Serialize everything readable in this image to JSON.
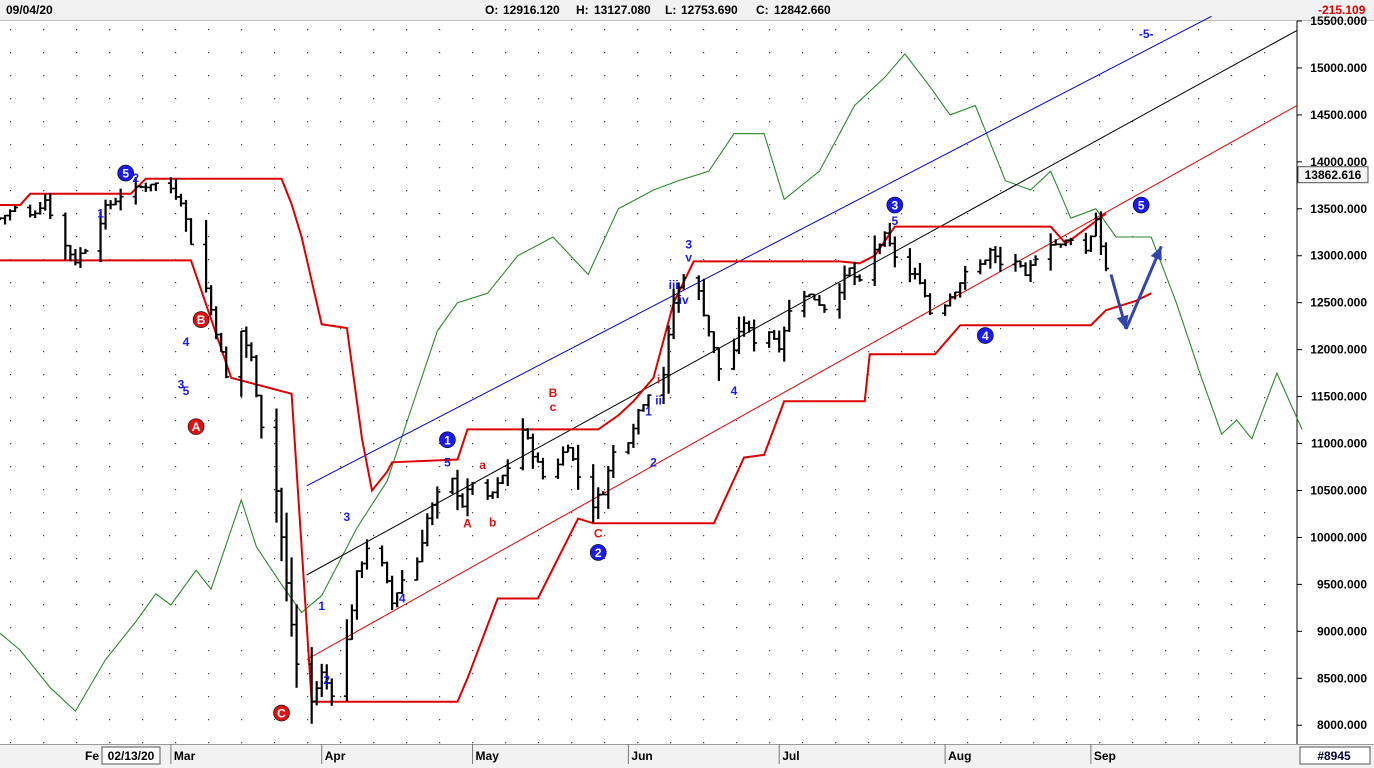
{
  "header": {
    "date": "09/04/20",
    "open_label": "O:",
    "open": "12916.120",
    "high_label": "H:",
    "high": "13127.080",
    "low_label": "L:",
    "low": "12753.690",
    "close_label": "C:",
    "close": "12842.660",
    "change": "-215.109"
  },
  "footer": {
    "cursor_date": "02/13/20",
    "partial_month": "Fe",
    "symbol": "#8945"
  },
  "colors": {
    "price_bars": "#000000",
    "upper_channel": "#0000cc",
    "middle_channel": "#000000",
    "lower_channel": "#dd0000",
    "stop_line": "#dd0000",
    "oscillator": "#2a8a2a",
    "wave_label_blue": "#1a1aee",
    "wave_label_red": "#dd1111",
    "forecast_arrow": "#3344aa",
    "change_negative": "#dd0000",
    "price_tag_bg": "#f3f3f3"
  },
  "chart_data": {
    "type": "ohlc",
    "title": "",
    "xlabel": "",
    "ylabel": "",
    "grid": true,
    "ylim": [
      7800,
      15500
    ],
    "y_ticks": [
      "8000.000",
      "8500.000",
      "9000.000",
      "9500.000",
      "10000.000",
      "10500.000",
      "11000.000",
      "11500.000",
      "12000.000",
      "12500.000",
      "13000.000",
      "13500.000",
      "14000.000",
      "14500.000",
      "15000.000",
      "15500.000"
    ],
    "x_range": [
      "2020-01-28",
      "2020-10-12"
    ],
    "x_ticks": [
      {
        "label": "Mar",
        "date": "2020-03-02"
      },
      {
        "label": "Apr",
        "date": "2020-04-01"
      },
      {
        "label": "May",
        "date": "2020-05-01"
      },
      {
        "label": "Jun",
        "date": "2020-06-01"
      },
      {
        "label": "Jul",
        "date": "2020-07-01"
      },
      {
        "label": "Aug",
        "date": "2020-08-03"
      },
      {
        "label": "Sep",
        "date": "2020-09-01"
      }
    ],
    "current_price_label": "13862.616",
    "current_price": 13862.616,
    "price_path": [
      [
        "2020-01-28",
        13400
      ],
      [
        "2020-01-31",
        13500
      ],
      [
        "2020-02-03",
        13420
      ],
      [
        "2020-02-06",
        13600
      ],
      [
        "2020-02-09",
        13180
      ],
      [
        "2020-02-12",
        12950
      ],
      [
        "2020-02-15",
        13150
      ],
      [
        "2020-02-18",
        13500
      ],
      [
        "2020-02-21",
        13650
      ],
      [
        "2020-02-24",
        13700
      ],
      [
        "2020-02-27",
        13780
      ],
      [
        "2020-03-02",
        13720
      ],
      [
        "2020-03-04",
        13600
      ],
      [
        "2020-03-06",
        13150
      ],
      [
        "2020-03-09",
        12650
      ],
      [
        "2020-03-11",
        12200
      ],
      [
        "2020-03-13",
        11700
      ],
      [
        "2020-03-16",
        12200
      ],
      [
        "2020-03-18",
        11900
      ],
      [
        "2020-03-20",
        11200
      ],
      [
        "2020-03-23",
        10500
      ],
      [
        "2020-03-25",
        9500
      ],
      [
        "2020-03-27",
        8650
      ],
      [
        "2020-03-30",
        8250
      ],
      [
        "2020-04-01",
        8550
      ],
      [
        "2020-04-03",
        8350
      ],
      [
        "2020-04-06",
        8900
      ],
      [
        "2020-04-08",
        9600
      ],
      [
        "2020-04-10",
        9900
      ],
      [
        "2020-04-13",
        9700
      ],
      [
        "2020-04-15",
        9300
      ],
      [
        "2020-04-17",
        9550
      ],
      [
        "2020-04-20",
        9750
      ],
      [
        "2020-04-22",
        10200
      ],
      [
        "2020-04-24",
        10450
      ],
      [
        "2020-04-27",
        10600
      ],
      [
        "2020-04-29",
        10350
      ],
      [
        "2020-05-01",
        10600
      ],
      [
        "2020-05-04",
        10400
      ],
      [
        "2020-05-06",
        10550
      ],
      [
        "2020-05-08",
        10750
      ],
      [
        "2020-05-11",
        11150
      ],
      [
        "2020-05-13",
        10900
      ],
      [
        "2020-05-15",
        10650
      ],
      [
        "2020-05-18",
        10800
      ],
      [
        "2020-05-20",
        11000
      ],
      [
        "2020-05-22",
        10650
      ],
      [
        "2020-05-25",
        10350
      ],
      [
        "2020-05-27",
        10500
      ],
      [
        "2020-05-29",
        10900
      ],
      [
        "2020-06-01",
        11050
      ],
      [
        "2020-06-03",
        11350
      ],
      [
        "2020-06-05",
        11550
      ],
      [
        "2020-06-08",
        11750
      ],
      [
        "2020-06-10",
        12500
      ],
      [
        "2020-06-12",
        12800
      ],
      [
        "2020-06-15",
        12600
      ],
      [
        "2020-06-17",
        12200
      ],
      [
        "2020-06-19",
        11800
      ],
      [
        "2020-06-22",
        12000
      ],
      [
        "2020-06-24",
        12300
      ],
      [
        "2020-06-26",
        12100
      ],
      [
        "2020-06-29",
        12200
      ],
      [
        "2020-07-01",
        12050
      ],
      [
        "2020-07-03",
        12400
      ],
      [
        "2020-07-06",
        12600
      ],
      [
        "2020-07-08",
        12550
      ],
      [
        "2020-07-10",
        12450
      ],
      [
        "2020-07-13",
        12650
      ],
      [
        "2020-07-15",
        12850
      ],
      [
        "2020-07-17",
        12700
      ],
      [
        "2020-07-20",
        13050
      ],
      [
        "2020-07-22",
        13200
      ],
      [
        "2020-07-24",
        13000
      ],
      [
        "2020-07-27",
        12800
      ],
      [
        "2020-07-29",
        12750
      ],
      [
        "2020-07-31",
        12400
      ],
      [
        "2020-08-03",
        12500
      ],
      [
        "2020-08-05",
        12650
      ],
      [
        "2020-08-07",
        12800
      ],
      [
        "2020-08-10",
        12900
      ],
      [
        "2020-08-12",
        13050
      ],
      [
        "2020-08-14",
        12900
      ],
      [
        "2020-08-17",
        12950
      ],
      [
        "2020-08-19",
        12750
      ],
      [
        "2020-08-21",
        13000
      ],
      [
        "2020-08-24",
        13150
      ],
      [
        "2020-08-26",
        13100
      ],
      [
        "2020-08-28",
        13200
      ],
      [
        "2020-08-31",
        13050
      ],
      [
        "2020-09-02",
        13400
      ],
      [
        "2020-09-04",
        12850
      ]
    ],
    "upper_channel": [
      [
        "2020-03-29",
        10550
      ],
      [
        "2020-09-25",
        15550
      ]
    ],
    "middle_channel": [
      [
        "2020-03-29",
        9600
      ],
      [
        "2020-10-12",
        15400
      ]
    ],
    "lower_channel": [
      [
        "2020-03-29",
        8700
      ],
      [
        "2020-10-12",
        14600
      ]
    ],
    "stop_line": [
      [
        "2020-01-28",
        13540
      ],
      [
        "2020-02-01",
        13540
      ],
      [
        "2020-02-03",
        13660
      ],
      [
        "2020-02-23",
        13660
      ],
      [
        "2020-02-26",
        13820
      ],
      [
        "2020-03-24",
        13820
      ],
      [
        "2020-03-26",
        13550
      ],
      [
        "2020-03-28",
        13200
      ],
      [
        "2020-04-01",
        12270
      ],
      [
        "2020-04-06",
        12230
      ],
      [
        "2020-04-09",
        11050
      ],
      [
        "2020-04-11",
        10500
      ],
      [
        "2020-04-14",
        10700
      ],
      [
        "2020-04-15",
        10800
      ],
      [
        "2020-04-28",
        10830
      ],
      [
        "2020-04-30",
        11150
      ],
      [
        "2020-05-26",
        11150
      ],
      [
        "2020-05-30",
        11300
      ],
      [
        "2020-06-02",
        11450
      ],
      [
        "2020-06-06",
        11700
      ],
      [
        "2020-06-10",
        12500
      ],
      [
        "2020-06-14",
        12940
      ],
      [
        "2020-07-13",
        12940
      ],
      [
        "2020-07-17",
        12920
      ],
      [
        "2020-07-20",
        13000
      ],
      [
        "2020-07-24",
        13310
      ],
      [
        "2020-08-24",
        13310
      ],
      [
        "2020-08-27",
        13130
      ],
      [
        "2020-09-04",
        13450
      ]
    ],
    "support_line": [
      [
        "2020-01-28",
        12950
      ],
      [
        "2020-03-04",
        12950
      ],
      [
        "2020-03-06",
        12950
      ],
      [
        "2020-03-14",
        11700
      ],
      [
        "2020-03-26",
        11530
      ],
      [
        "2020-03-30",
        8250
      ],
      [
        "2020-04-28",
        8250
      ],
      [
        "2020-04-30",
        8500
      ],
      [
        "2020-05-06",
        9350
      ],
      [
        "2020-05-14",
        9350
      ],
      [
        "2020-05-22",
        10200
      ],
      [
        "2020-05-25",
        10150
      ],
      [
        "2020-06-18",
        10150
      ],
      [
        "2020-06-24",
        10850
      ],
      [
        "2020-06-28",
        10880
      ],
      [
        "2020-07-02",
        11450
      ],
      [
        "2020-07-18",
        11450
      ],
      [
        "2020-07-19",
        11950
      ],
      [
        "2020-08-01",
        11950
      ],
      [
        "2020-08-06",
        12260
      ],
      [
        "2020-09-01",
        12260
      ],
      [
        "2020-09-04",
        12420
      ],
      [
        "2020-09-10",
        12520
      ],
      [
        "2020-09-13",
        12600
      ]
    ],
    "oscillator_line": [
      [
        "2020-01-28",
        8980
      ],
      [
        "2020-02-01",
        8800
      ],
      [
        "2020-02-07",
        8400
      ],
      [
        "2020-02-12",
        8150
      ],
      [
        "2020-02-18",
        8700
      ],
      [
        "2020-02-24",
        9100
      ],
      [
        "2020-02-28",
        9400
      ],
      [
        "2020-03-02",
        9280
      ],
      [
        "2020-03-07",
        9650
      ],
      [
        "2020-03-10",
        9450
      ],
      [
        "2020-03-16",
        10400
      ],
      [
        "2020-03-19",
        9900
      ],
      [
        "2020-03-24",
        9500
      ],
      [
        "2020-03-28",
        9200
      ],
      [
        "2020-04-01",
        9380
      ],
      [
        "2020-04-08",
        10100
      ],
      [
        "2020-04-14",
        10600
      ],
      [
        "2020-04-19",
        11400
      ],
      [
        "2020-04-24",
        12200
      ],
      [
        "2020-04-28",
        12500
      ],
      [
        "2020-05-04",
        12600
      ],
      [
        "2020-05-10",
        13000
      ],
      [
        "2020-05-17",
        13200
      ],
      [
        "2020-05-24",
        12800
      ],
      [
        "2020-05-30",
        13500
      ],
      [
        "2020-06-06",
        13700
      ],
      [
        "2020-06-11",
        13800
      ],
      [
        "2020-06-17",
        13900
      ],
      [
        "2020-06-22",
        14300
      ],
      [
        "2020-06-28",
        14300
      ],
      [
        "2020-07-02",
        13600
      ],
      [
        "2020-07-09",
        13900
      ],
      [
        "2020-07-16",
        14600
      ],
      [
        "2020-07-22",
        14900
      ],
      [
        "2020-07-26",
        15150
      ],
      [
        "2020-07-31",
        14800
      ],
      [
        "2020-08-04",
        14500
      ],
      [
        "2020-08-09",
        14600
      ],
      [
        "2020-08-15",
        13800
      ],
      [
        "2020-08-20",
        13700
      ],
      [
        "2020-08-24",
        13900
      ],
      [
        "2020-08-28",
        13400
      ],
      [
        "2020-09-02",
        13500
      ],
      [
        "2020-09-06",
        13200
      ],
      [
        "2020-09-13",
        13200
      ],
      [
        "2020-09-18",
        12500
      ],
      [
        "2020-09-23",
        11700
      ],
      [
        "2020-09-27",
        11100
      ],
      [
        "2020-09-30",
        11250
      ],
      [
        "2020-10-03",
        11050
      ],
      [
        "2020-10-08",
        11750
      ],
      [
        "2020-10-13",
        11150
      ]
    ],
    "forecast_arrows": [
      {
        "from": [
          "2020-09-05",
          12800
        ],
        "to": [
          "2020-09-08",
          12220
        ]
      },
      {
        "from": [
          "2020-09-08",
          12220
        ],
        "to": [
          "2020-09-15",
          13100
        ]
      }
    ],
    "annotations": [
      {
        "text": "5",
        "date": "2020-02-22",
        "price": 13880,
        "color": "blue",
        "circled": true
      },
      {
        "text": "2",
        "date": "2020-02-24",
        "price": 13830,
        "color": "blue"
      },
      {
        "text": "1",
        "date": "2020-02-17",
        "price": 13450,
        "color": "blue"
      },
      {
        "text": "B",
        "date": "2020-03-08",
        "price": 12320,
        "color": "red",
        "circled": true
      },
      {
        "text": "4",
        "date": "2020-03-05",
        "price": 12080,
        "color": "blue"
      },
      {
        "text": "3",
        "date": "2020-03-04",
        "price": 11630,
        "color": "blue"
      },
      {
        "text": "5",
        "date": "2020-03-05",
        "price": 11560,
        "color": "blue"
      },
      {
        "text": "A",
        "date": "2020-03-07",
        "price": 11180,
        "color": "red",
        "circled": true
      },
      {
        "text": "C",
        "date": "2020-03-24",
        "price": 8130,
        "color": "red",
        "circled": true
      },
      {
        "text": "1",
        "date": "2020-04-01",
        "price": 9270,
        "color": "blue"
      },
      {
        "text": "2",
        "date": "2020-04-02",
        "price": 8480,
        "color": "blue"
      },
      {
        "text": "3",
        "date": "2020-04-06",
        "price": 10220,
        "color": "blue"
      },
      {
        "text": "4",
        "date": "2020-04-17",
        "price": 9350,
        "color": "blue"
      },
      {
        "text": "1",
        "date": "2020-04-26",
        "price": 11040,
        "color": "blue",
        "circled": true
      },
      {
        "text": "5",
        "date": "2020-04-26",
        "price": 10800,
        "color": "blue"
      },
      {
        "text": "A",
        "date": "2020-04-30",
        "price": 10150,
        "color": "red"
      },
      {
        "text": "a",
        "date": "2020-05-03",
        "price": 10770,
        "color": "red"
      },
      {
        "text": "b",
        "date": "2020-05-05",
        "price": 10160,
        "color": "red"
      },
      {
        "text": "B",
        "date": "2020-05-17",
        "price": 11540,
        "color": "red"
      },
      {
        "text": "c",
        "date": "2020-05-17",
        "price": 11390,
        "color": "red"
      },
      {
        "text": "C",
        "date": "2020-05-26",
        "price": 10040,
        "color": "red"
      },
      {
        "text": "2",
        "date": "2020-05-26",
        "price": 9840,
        "color": "blue",
        "circled": true
      },
      {
        "text": "1",
        "date": "2020-06-05",
        "price": 11340,
        "color": "blue"
      },
      {
        "text": "2",
        "date": "2020-06-06",
        "price": 10800,
        "color": "blue"
      },
      {
        "text": "i",
        "date": "2020-06-07",
        "price": 11680,
        "color": "red"
      },
      {
        "text": "ii",
        "date": "2020-06-07",
        "price": 11460,
        "color": "blue"
      },
      {
        "text": "3",
        "date": "2020-06-13",
        "price": 13120,
        "color": "blue"
      },
      {
        "text": "v",
        "date": "2020-06-13",
        "price": 12980,
        "color": "blue"
      },
      {
        "text": "iii",
        "date": "2020-06-10",
        "price": 12690,
        "color": "blue"
      },
      {
        "text": "iv",
        "date": "2020-06-12",
        "price": 12530,
        "color": "blue"
      },
      {
        "text": "4",
        "date": "2020-06-22",
        "price": 11560,
        "color": "blue"
      },
      {
        "text": "3",
        "date": "2020-07-24",
        "price": 13540,
        "color": "blue",
        "circled": true
      },
      {
        "text": "5",
        "date": "2020-07-24",
        "price": 13370,
        "color": "blue"
      },
      {
        "text": "4",
        "date": "2020-08-11",
        "price": 12150,
        "color": "blue",
        "circled": true
      },
      {
        "text": "5",
        "date": "2020-09-11",
        "price": 13540,
        "color": "blue",
        "circled": true
      },
      {
        "text": "-5-",
        "date": "2020-09-12",
        "price": 15360,
        "color": "blue"
      }
    ]
  }
}
